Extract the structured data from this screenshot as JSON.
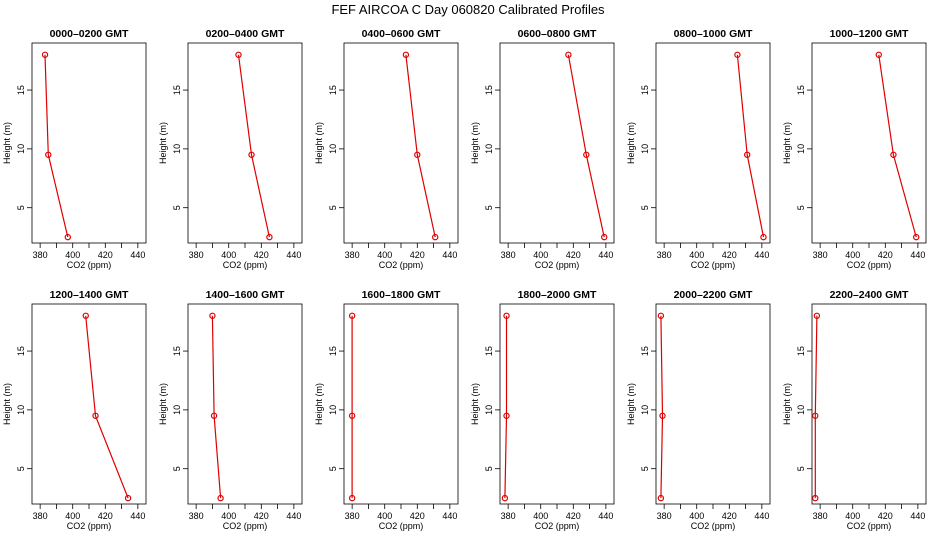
{
  "figure": {
    "title": "FEF AIRCOA C  Day 060820  Calibrated Profiles"
  },
  "chart_data": {
    "type": "line",
    "xlabel": "CO2 (ppm)",
    "ylabel": "Height (m)",
    "xlim": [
      375,
      445
    ],
    "ylim": [
      2,
      19
    ],
    "xticks": [
      380,
      400,
      420,
      440
    ],
    "yticks": [
      5,
      10,
      15
    ],
    "series_color": "#e00000",
    "panels": [
      {
        "title": "0000–0200 GMT",
        "points": [
          {
            "height": 18,
            "co2": 383
          },
          {
            "height": 9.5,
            "co2": 385
          },
          {
            "height": 2.5,
            "co2": 397
          }
        ]
      },
      {
        "title": "0200–0400 GMT",
        "points": [
          {
            "height": 18,
            "co2": 406
          },
          {
            "height": 9.5,
            "co2": 414
          },
          {
            "height": 2.5,
            "co2": 425
          }
        ]
      },
      {
        "title": "0400–0600 GMT",
        "points": [
          {
            "height": 18,
            "co2": 413
          },
          {
            "height": 9.5,
            "co2": 420
          },
          {
            "height": 2.5,
            "co2": 431
          }
        ]
      },
      {
        "title": "0600–0800 GMT",
        "points": [
          {
            "height": 18,
            "co2": 417
          },
          {
            "height": 9.5,
            "co2": 428
          },
          {
            "height": 2.5,
            "co2": 439
          }
        ]
      },
      {
        "title": "0800–1000 GMT",
        "points": [
          {
            "height": 18,
            "co2": 425
          },
          {
            "height": 9.5,
            "co2": 431
          },
          {
            "height": 2.5,
            "co2": 441
          }
        ]
      },
      {
        "title": "1000–1200 GMT",
        "points": [
          {
            "height": 18,
            "co2": 416
          },
          {
            "height": 9.5,
            "co2": 425
          },
          {
            "height": 2.5,
            "co2": 439
          }
        ]
      },
      {
        "title": "1200–1400 GMT",
        "points": [
          {
            "height": 18,
            "co2": 408
          },
          {
            "height": 9.5,
            "co2": 414
          },
          {
            "height": 2.5,
            "co2": 434
          }
        ]
      },
      {
        "title": "1400–1600 GMT",
        "points": [
          {
            "height": 18,
            "co2": 390
          },
          {
            "height": 9.5,
            "co2": 391
          },
          {
            "height": 2.5,
            "co2": 395
          }
        ]
      },
      {
        "title": "1600–1800 GMT",
        "points": [
          {
            "height": 18,
            "co2": 380
          },
          {
            "height": 9.5,
            "co2": 380
          },
          {
            "height": 2.5,
            "co2": 380
          }
        ]
      },
      {
        "title": "1800–2000 GMT",
        "points": [
          {
            "height": 18,
            "co2": 379
          },
          {
            "height": 9.5,
            "co2": 379
          },
          {
            "height": 2.5,
            "co2": 378
          }
        ]
      },
      {
        "title": "2000–2200 GMT",
        "points": [
          {
            "height": 18,
            "co2": 378
          },
          {
            "height": 9.5,
            "co2": 379
          },
          {
            "height": 2.5,
            "co2": 378
          }
        ]
      },
      {
        "title": "2200–2400 GMT",
        "points": [
          {
            "height": 18,
            "co2": 378
          },
          {
            "height": 9.5,
            "co2": 377
          },
          {
            "height": 2.5,
            "co2": 377
          }
        ]
      }
    ]
  }
}
